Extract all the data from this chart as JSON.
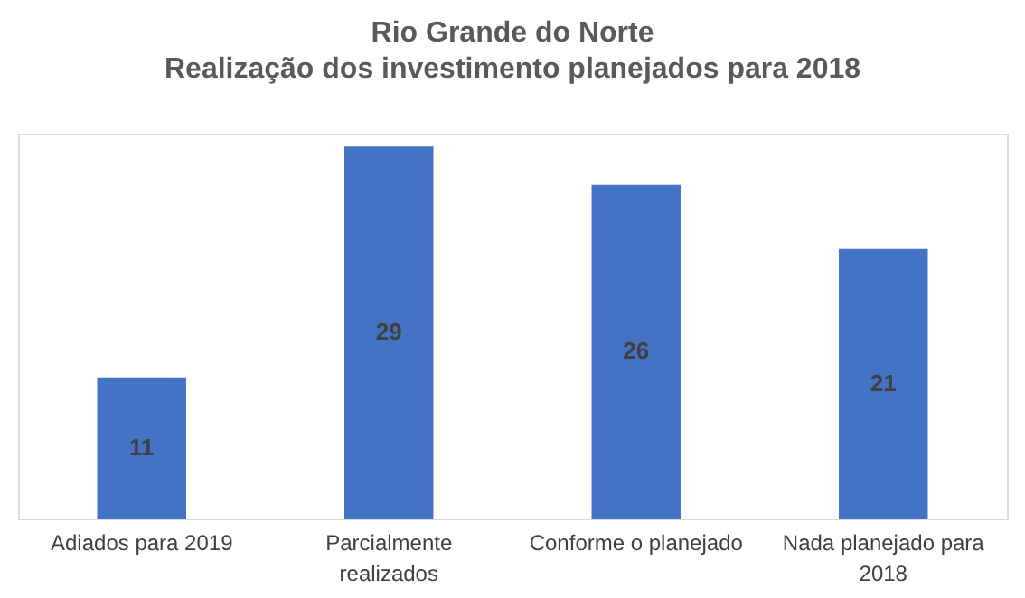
{
  "chart_data": {
    "type": "bar",
    "title": "Rio Grande do Norte",
    "subtitle": "Realização dos investimento planejados para 2018",
    "categories": [
      "Adiados para 2019",
      "Parcialmente realizados",
      "Conforme o planejado",
      "Nada planejado para 2018"
    ],
    "values": [
      11,
      29,
      26,
      21
    ],
    "color": "#4472c4",
    "data_labels": true
  }
}
